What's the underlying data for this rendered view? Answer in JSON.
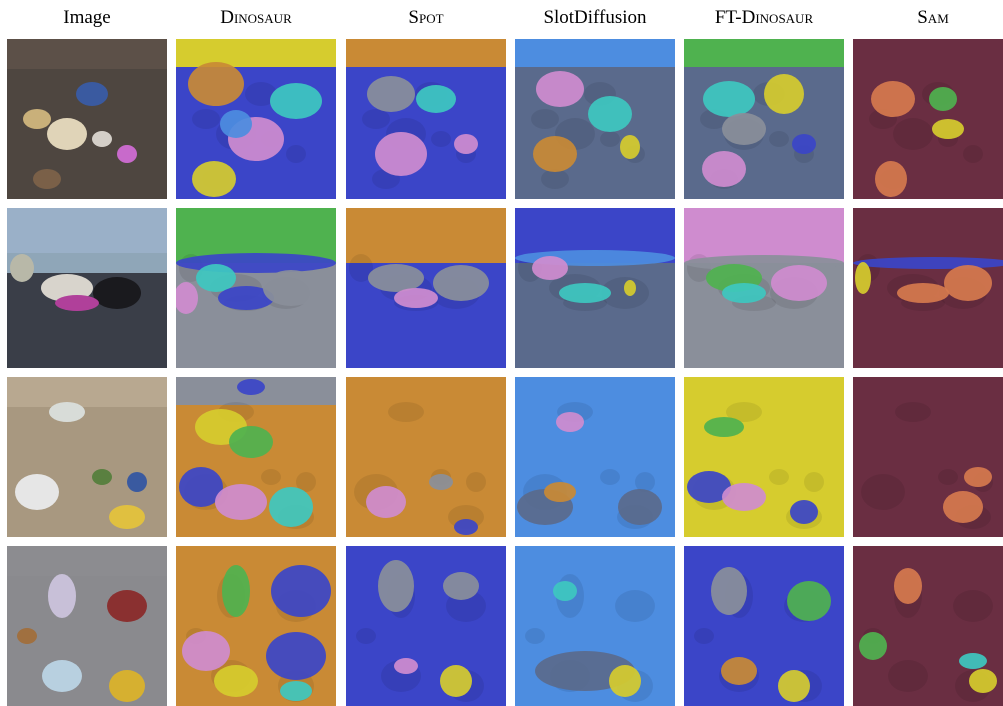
{
  "columns": [
    {
      "label": "Image"
    },
    {
      "label": "Dinosaur"
    },
    {
      "label": "Spot"
    },
    {
      "label": "SlotDiffusion"
    },
    {
      "label": "FT-Dinosaur"
    },
    {
      "label": "Sam"
    }
  ],
  "rows": [
    {
      "scene": "toys on dirt"
    },
    {
      "scene": "shoe and boxes on mat by water"
    },
    {
      "scene": "toys on gravel"
    },
    {
      "scene": "toys on gray floor, top view"
    }
  ],
  "colors": {
    "blue": "#3b45c8",
    "orange": "#c98a35",
    "yellow": "#d6cc2e",
    "pink": "#cf8ccf",
    "cyan": "#3ec8c0",
    "green": "#4fb24f",
    "gray": "#8a8f9a",
    "sky": "#4d8de0",
    "slate": "#5a6a8c",
    "maroon": "#6a2e42",
    "salmon": "#d67a4e"
  }
}
